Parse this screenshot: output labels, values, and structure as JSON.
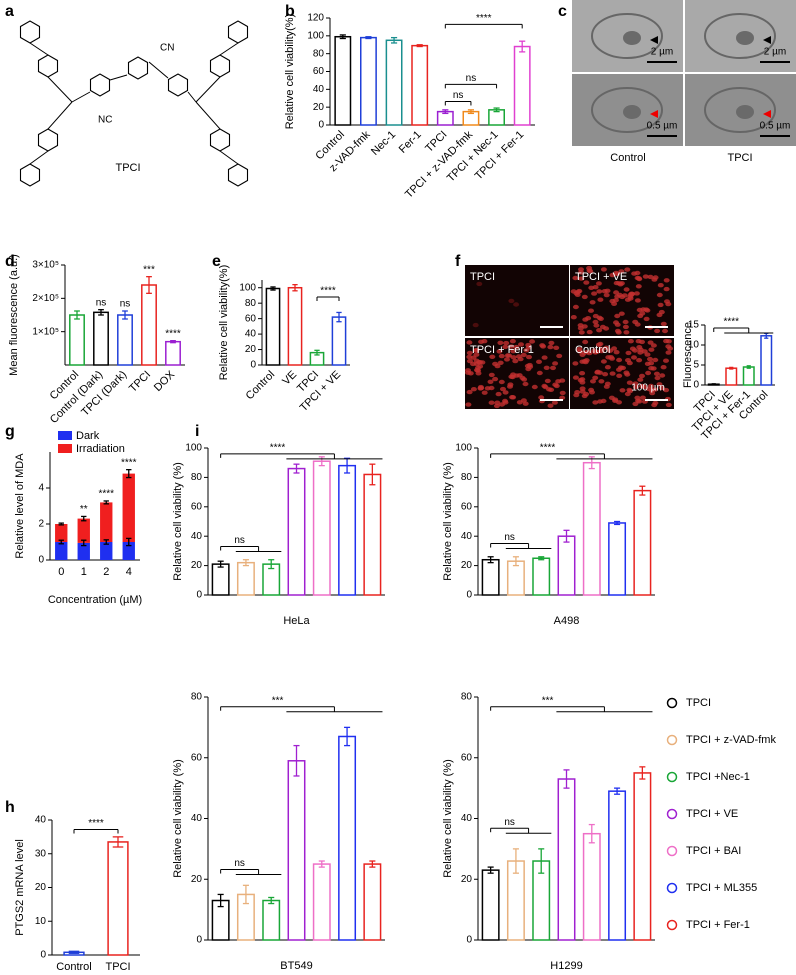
{
  "panel_labels": [
    "a",
    "b",
    "c",
    "d",
    "e",
    "f",
    "g",
    "h",
    "i"
  ],
  "structure": {
    "name": "TPCI",
    "labels": [
      "NC",
      "CN"
    ]
  },
  "micrographs": {
    "scale_bars": [
      "2 µm",
      "2 µm",
      "0.5 µm",
      "0.5 µm"
    ],
    "columns": [
      "Control",
      "TPCI"
    ]
  },
  "fluorescence_images": {
    "labels": [
      "TPCI",
      "TPCI + VE",
      "TPCI + Fer-1",
      "Control"
    ],
    "scale_bar": "100 µm"
  },
  "chart_data": [
    {
      "type": "bar",
      "y_label": "Relative cell viability(%)",
      "categories": [
        "Control",
        "z-VAD-fmk",
        "Nec-1",
        "Fer-1",
        "TPCI",
        "TPCI + z-VAD-fmk",
        "TPCI + Nec-1",
        "TPCI + Fer-1"
      ],
      "values": [
        99,
        98,
        95,
        89,
        15,
        15,
        17,
        88
      ],
      "errors": [
        2,
        1,
        3,
        1,
        2,
        2,
        2,
        6
      ],
      "colors": [
        "#000000",
        "#1f3fd8",
        "#1a8f8f",
        "#e8231f",
        "#9b1fd1",
        "#f08a1c",
        "#19a637",
        "#e040d0"
      ],
      "ylim": [
        0,
        120
      ],
      "yticks": [
        0,
        20,
        40,
        60,
        80,
        100,
        120
      ],
      "annotations": [
        "****",
        "ns",
        "ns"
      ]
    },
    {
      "type": "bar",
      "y_label": "Mean fluorescence (a.u.)",
      "categories": [
        "Control",
        "Control (Dark)",
        "TPCI (Dark)",
        "TPCI",
        "DOX"
      ],
      "values": [
        150000,
        158000,
        150000,
        240000,
        70000
      ],
      "errors": [
        12000,
        8000,
        12000,
        25000,
        3000
      ],
      "colors": [
        "#19a637",
        "#000000",
        "#1f3fd8",
        "#e8231f",
        "#9b1fd1"
      ],
      "ylim": [
        0,
        300000
      ],
      "yticks": [
        {
          "value": 100000,
          "label": "1×10⁵"
        },
        {
          "value": 200000,
          "label": "2×10⁵"
        },
        {
          "value": 300000,
          "label": "3×10⁵"
        }
      ],
      "annotations": [
        "ns",
        "ns",
        "***",
        "****"
      ]
    },
    {
      "type": "bar",
      "y_label": "Relative cell viability(%)",
      "categories": [
        "Control",
        "VE",
        "TPCI",
        "TPCI + VE"
      ],
      "values": [
        99,
        100,
        16,
        62
      ],
      "errors": [
        2,
        4,
        3,
        6
      ],
      "colors": [
        "#000000",
        "#e8231f",
        "#19a637",
        "#1f3fd8"
      ],
      "ylim": [
        0,
        110
      ],
      "yticks": [
        0,
        20,
        40,
        60,
        80,
        100
      ],
      "annotations": [
        "****"
      ]
    },
    {
      "type": "bar",
      "y_label": "Fluorescence",
      "categories": [
        "TPCI",
        "TPCI + VE",
        "TPCI + Fer-1",
        "Control"
      ],
      "values": [
        0.2,
        4.2,
        4.5,
        12.3
      ],
      "errors": [
        0.1,
        0.2,
        0.3,
        0.6
      ],
      "colors": [
        "#000000",
        "#e8231f",
        "#19a637",
        "#1f3fd8"
      ],
      "ylim": [
        0,
        15
      ],
      "yticks": [
        0,
        5,
        10,
        15
      ],
      "annotations": [
        "****"
      ]
    },
    {
      "type": "stacked_bar",
      "y_label": "Relative level of MDA",
      "x_label": "Concentration (µM)",
      "categories": [
        "0",
        "1",
        "2",
        "4"
      ],
      "series": [
        {
          "name": "Dark",
          "color": "#1f2ff0",
          "values": [
            1.0,
            0.95,
            1.0,
            1.0
          ],
          "errors": [
            0.1,
            0.15,
            0.12,
            0.2
          ]
        },
        {
          "name": "Irradiation",
          "color": "#f01f1f",
          "values": [
            1.0,
            1.35,
            2.2,
            3.8
          ],
          "errors": [
            0.05,
            0.12,
            0.08,
            0.22
          ]
        }
      ],
      "ylim": [
        0,
        6
      ],
      "yticks": [
        0,
        2,
        4
      ],
      "annotations": [
        "**",
        "****",
        "****"
      ]
    },
    {
      "type": "bar",
      "y_label": "PTGS2 mRNA level",
      "categories": [
        "Control",
        "TPCI"
      ],
      "values": [
        0.8,
        33.5
      ],
      "errors": [
        0.3,
        1.5
      ],
      "colors": [
        "#1f3fd8",
        "#e8231f"
      ],
      "ylim": [
        0,
        40
      ],
      "yticks": [
        0,
        10,
        20,
        30,
        40
      ],
      "annotations": [
        "****"
      ]
    },
    {
      "type": "bar",
      "y_label": "Relative cell viability (%)",
      "x_label": "HeLa",
      "categories": [
        "TPCI",
        "TPCI + z-VAD-fmk",
        "TPCI +Nec-1",
        "TPCI + VE",
        "TPCI + BAI",
        "TPCI + ML355",
        "TPCI + Fer-1"
      ],
      "values": [
        21,
        22,
        21,
        86,
        91,
        88,
        82
      ],
      "errors": [
        2,
        2,
        3,
        3,
        3,
        5,
        7
      ],
      "colors": [
        "#000000",
        "#e8b07c",
        "#19a637",
        "#a020d0",
        "#ee6fc7",
        "#1f2ff0",
        "#e8231f"
      ],
      "ylim": [
        0,
        100
      ],
      "yticks": [
        0,
        20,
        40,
        60,
        80,
        100
      ],
      "annotations": [
        "****",
        "ns"
      ]
    },
    {
      "type": "bar",
      "y_label": "Relative cell viability (%)",
      "x_label": "A498",
      "categories": [
        "TPCI",
        "TPCI + z-VAD-fmk",
        "TPCI +Nec-1",
        "TPCI + VE",
        "TPCI + BAI",
        "TPCI + ML355",
        "TPCI + Fer-1"
      ],
      "values": [
        24,
        23,
        25,
        40,
        90,
        49,
        71
      ],
      "errors": [
        2,
        3,
        1,
        4,
        4,
        1,
        3
      ],
      "colors": [
        "#000000",
        "#e8b07c",
        "#19a637",
        "#a020d0",
        "#ee6fc7",
        "#1f2ff0",
        "#e8231f"
      ],
      "ylim": [
        0,
        100
      ],
      "yticks": [
        0,
        20,
        40,
        60,
        80,
        100
      ],
      "annotations": [
        "****",
        "ns"
      ]
    },
    {
      "type": "bar",
      "y_label": "Relative cell viability (%)",
      "x_label": "BT549",
      "categories": [
        "TPCI",
        "TPCI + z-VAD-fmk",
        "TPCI +Nec-1",
        "TPCI + VE",
        "TPCI + BAI",
        "TPCI + ML355",
        "TPCI + Fer-1"
      ],
      "values": [
        13,
        15,
        13,
        59,
        25,
        67,
        25
      ],
      "errors": [
        2,
        3,
        1,
        5,
        1,
        3,
        1
      ],
      "colors": [
        "#000000",
        "#e8b07c",
        "#19a637",
        "#a020d0",
        "#ee6fc7",
        "#1f2ff0",
        "#e8231f"
      ],
      "ylim": [
        0,
        80
      ],
      "yticks": [
        0,
        20,
        40,
        60,
        80
      ],
      "annotations": [
        "***",
        "ns"
      ]
    },
    {
      "type": "bar",
      "y_label": "Relative cell viability (%)",
      "x_label": "H1299",
      "categories": [
        "TPCI",
        "TPCI + z-VAD-fmk",
        "TPCI +Nec-1",
        "TPCI + VE",
        "TPCI + BAI",
        "TPCI + ML355",
        "TPCI + Fer-1"
      ],
      "values": [
        23,
        26,
        26,
        53,
        35,
        49,
        55
      ],
      "errors": [
        1,
        4,
        4,
        3,
        3,
        1,
        2
      ],
      "colors": [
        "#000000",
        "#e8b07c",
        "#19a637",
        "#a020d0",
        "#ee6fc7",
        "#1f2ff0",
        "#e8231f"
      ],
      "ylim": [
        0,
        80
      ],
      "yticks": [
        0,
        20,
        40,
        60,
        80
      ],
      "annotations": [
        "***",
        "ns"
      ]
    }
  ]
}
